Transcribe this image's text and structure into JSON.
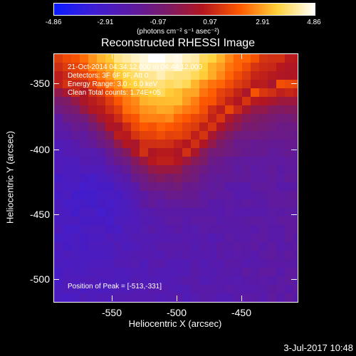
{
  "colorbar": {
    "ticks": [
      "-4.86",
      "-2.91",
      "-0.97",
      "0.97",
      "2.91",
      "4.86"
    ],
    "units": "(photons cm⁻² s⁻¹ asec⁻²)",
    "colors": [
      "#0b1cff",
      "#3c1ed8",
      "#5a1aa8",
      "#7a1b6a",
      "#b3161f",
      "#ff5a00",
      "#ffd23a",
      "#ffffff"
    ]
  },
  "title": "Reconstructed RHESSI Image",
  "info": {
    "line1": "21-Oct-2014 04:34:12.000 to 04:44:12.000",
    "line2": "Detectors: 3F 6F 9F, Att 0",
    "line3": "Energy Range: 3.0 - 6.0 keV",
    "line4": "Clean     Total counts: 1.74E+05",
    "peak": "Position of Peak = [-513,-331]"
  },
  "axes": {
    "xlabel": "Heliocentric X (arcsec)",
    "ylabel": "Heliocentric Y (arcsec)",
    "xticks": [
      "-550",
      "-500",
      "-450"
    ],
    "yticks": [
      "-350",
      "-400",
      "-450",
      "-500"
    ]
  },
  "timestamp": "3-Jul-2017 10:48"
}
